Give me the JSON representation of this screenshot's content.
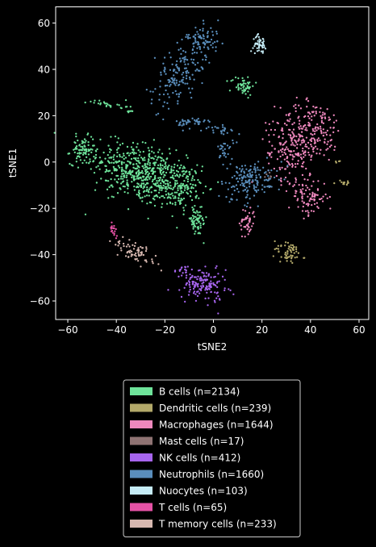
{
  "chart_data": {
    "type": "scatter",
    "title": "",
    "xlabel": "tSNE2",
    "ylabel": "tSNE1",
    "xlim": [
      -65,
      64
    ],
    "ylim": [
      -68,
      67
    ],
    "xticks": [
      -60,
      -40,
      -20,
      0,
      20,
      40,
      60
    ],
    "yticks": [
      -60,
      -40,
      -20,
      0,
      20,
      40,
      60
    ],
    "grid": false,
    "legend_position": "bottom",
    "background": "#000000",
    "series": [
      {
        "name": "B cells (n=2134)",
        "color": "#6ee39a",
        "clusters": [
          {
            "cx": -29,
            "cy": -5,
            "sx": 10,
            "sy": 6,
            "n": 560,
            "rot": -0.38
          },
          {
            "cx": -13,
            "cy": -11,
            "sx": 4,
            "sy": 4.5,
            "n": 120,
            "rot": 0
          },
          {
            "cx": -7,
            "cy": -26,
            "sx": 2.2,
            "sy": 3,
            "n": 60,
            "rot": 0
          },
          {
            "cx": -54,
            "cy": 5,
            "sx": 2.5,
            "sy": 3,
            "n": 80,
            "rot": 0
          },
          {
            "cx": 12,
            "cy": 33,
            "sx": 2.5,
            "sy": 2,
            "n": 55,
            "rot": 0
          },
          {
            "cx": -43,
            "cy": 25,
            "sx": 4,
            "sy": 0.8,
            "n": 26,
            "rot": -0.15
          },
          {
            "cx": -34,
            "cy": 22,
            "sx": 0.8,
            "sy": 0.5,
            "n": 6,
            "rot": 0
          }
        ]
      },
      {
        "name": "Dendritic cells (n=239)",
        "color": "#b3a96a",
        "clusters": [
          {
            "cx": 31,
            "cy": -39,
            "sx": 3,
            "sy": 2.2,
            "n": 60,
            "rot": -0.3
          },
          {
            "cx": 54,
            "cy": -9,
            "sx": 1.6,
            "sy": 0.7,
            "n": 12,
            "rot": 0
          },
          {
            "cx": 52,
            "cy": 0,
            "sx": 0.5,
            "sy": 1,
            "n": 4,
            "rot": 0
          }
        ]
      },
      {
        "name": "Macrophages (n=1644)",
        "color": "#ee88bd",
        "clusters": [
          {
            "cx": 40,
            "cy": 14,
            "sx": 7,
            "sy": 6,
            "n": 200,
            "rot": -0.2
          },
          {
            "cx": 32,
            "cy": 4,
            "sx": 5,
            "sy": 6,
            "n": 140,
            "rot": 0
          },
          {
            "cx": 39,
            "cy": -15,
            "sx": 4,
            "sy": 4,
            "n": 90,
            "rot": 0
          },
          {
            "cx": 14,
            "cy": -26,
            "sx": 1.6,
            "sy": 3.5,
            "n": 45,
            "rot": 0
          }
        ]
      },
      {
        "name": "Mast cells (n=17)",
        "color": "#8f7373",
        "clusters": [
          {
            "cx": 22,
            "cy": -5,
            "sx": 1.5,
            "sy": 1.5,
            "n": 6,
            "rot": 0
          }
        ]
      },
      {
        "name": "NK cells (n=412)",
        "color": "#a765ee",
        "clusters": [
          {
            "cx": -4,
            "cy": -53,
            "sx": 4.5,
            "sy": 3.5,
            "n": 150,
            "rot": -0.3
          },
          {
            "cx": -13,
            "cy": -47,
            "sx": 1.5,
            "sy": 1,
            "n": 15,
            "rot": 0
          }
        ]
      },
      {
        "name": "Neutrophils (n=1660)",
        "color": "#5a8ebc",
        "clusters": [
          {
            "cx": -13,
            "cy": 40,
            "sx": 4,
            "sy": 9,
            "n": 170,
            "rot": -0.6
          },
          {
            "cx": -4,
            "cy": 53,
            "sx": 3.5,
            "sy": 3,
            "n": 60,
            "rot": 0
          },
          {
            "cx": -9,
            "cy": 17,
            "sx": 3,
            "sy": 1.3,
            "n": 40,
            "rot": 0
          },
          {
            "cx": 3,
            "cy": 14,
            "sx": 3,
            "sy": 1.2,
            "n": 25,
            "rot": -0.3
          },
          {
            "cx": 5,
            "cy": 5,
            "sx": 1.6,
            "sy": 3,
            "n": 30,
            "rot": 0
          },
          {
            "cx": 15,
            "cy": -8,
            "sx": 6,
            "sy": 4,
            "n": 160,
            "rot": 0.25
          }
        ]
      },
      {
        "name": "Nuocytes (n=103)",
        "color": "#c5ebf5",
        "clusters": [
          {
            "cx": 19,
            "cy": 51,
            "sx": 1.3,
            "sy": 1.8,
            "n": 45,
            "rot": 0
          }
        ]
      },
      {
        "name": "T cells (n=65)",
        "color": "#e652a6",
        "clusters": [
          {
            "cx": -41,
            "cy": -29,
            "sx": 0.8,
            "sy": 1.5,
            "n": 18,
            "rot": 0
          }
        ]
      },
      {
        "name": "T memory cells (n=233)",
        "color": "#d7b8b0",
        "clusters": [
          {
            "cx": -32,
            "cy": -39,
            "sx": 5,
            "sy": 2.2,
            "n": 70,
            "rot": -0.5
          }
        ]
      }
    ]
  }
}
